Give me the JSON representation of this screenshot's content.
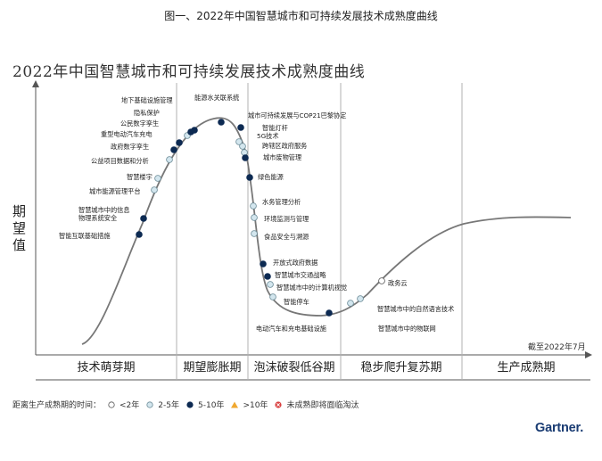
{
  "figure_caption": "图一、2022年中国智慧城市和可持续发展技术成熟度曲线",
  "chart_data": {
    "type": "scatter",
    "title": "2022年中国智慧城市和可持续发展技术成熟度曲线",
    "ylabel": "期望值",
    "xlabel": "",
    "as_of": "截至2022年7月",
    "phases": [
      "技术萌芽期",
      "期望膨胀期",
      "泡沫破裂低谷期",
      "稳步爬升复苏期",
      "生产成熟期"
    ],
    "legend": {
      "title": "距离生产成熟期的时间：",
      "items": [
        {
          "label": "<2年",
          "symbol": "circle-white"
        },
        {
          "label": "2-5年",
          "symbol": "circle-light"
        },
        {
          "label": "5-10年",
          "symbol": "circle-dark"
        },
        {
          "label": ">10年",
          "symbol": "triangle"
        },
        {
          "label": "未成熟即将面临淘汰",
          "symbol": "circle-x"
        }
      ]
    },
    "points": [
      {
        "label": "智能互联基础措施",
        "category": "5-10年"
      },
      {
        "label": "智慧城市中的信息\n物理系统安全",
        "category": "5-10年"
      },
      {
        "label": "城市能源管理平台",
        "category": "2-5年"
      },
      {
        "label": "智慧楼宇",
        "category": "2-5年"
      },
      {
        "label": "公益项目数据和分析",
        "category": "2-5年"
      },
      {
        "label": "政府数字孪生",
        "category": "5-10年"
      },
      {
        "label": "重型电动汽车充电",
        "category": "5-10年"
      },
      {
        "label": "公民数字孪生",
        "category": "2-5年"
      },
      {
        "label": "隐私保护",
        "category": "5-10年"
      },
      {
        "label": "地下基础设施管理",
        "category": "5-10年"
      },
      {
        "label": "能源水关联系统",
        "category": "5-10年"
      },
      {
        "label": "城市可持续发展与COP21巴黎协定",
        "category": "5-10年"
      },
      {
        "label": "智能灯杆",
        "category": "2-5年"
      },
      {
        "label": "5G技术",
        "category": "2-5年"
      },
      {
        "label": "跨辖区政府服务",
        "category": "2-5年"
      },
      {
        "label": "城市废物管理",
        "category": "5-10年"
      },
      {
        "label": "绿色能源",
        "category": "5-10年"
      },
      {
        "label": "水务管理分析",
        "category": "2-5年"
      },
      {
        "label": "环境监测与管理",
        "category": "2-5年"
      },
      {
        "label": "食品安全与溯源",
        "category": "2-5年"
      },
      {
        "label": "开放式政府数据",
        "category": "5-10年"
      },
      {
        "label": "智慧城市交通战略",
        "category": "5-10年"
      },
      {
        "label": "智慧城市中的计算机视觉",
        "category": "2-5年"
      },
      {
        "label": "智能停车",
        "category": "2-5年"
      },
      {
        "label": "电动汽车和充电基础设施",
        "category": "5-10年"
      },
      {
        "label": "智慧城市中的物联网",
        "category": "2-5年"
      },
      {
        "label": "智慧城市中的自然语言技术",
        "category": "2-5年"
      },
      {
        "label": "政务云",
        "category": "<2年"
      }
    ]
  },
  "brand": {
    "logo_text": "Gartner",
    "logo_dot": "."
  },
  "colors": {
    "curve": "#777777",
    "dark": "#0d2a52",
    "light": "#d3e6ee",
    "light_stroke": "#6a8a96",
    "axis": "#555555",
    "divider": "#b0b0b0"
  }
}
